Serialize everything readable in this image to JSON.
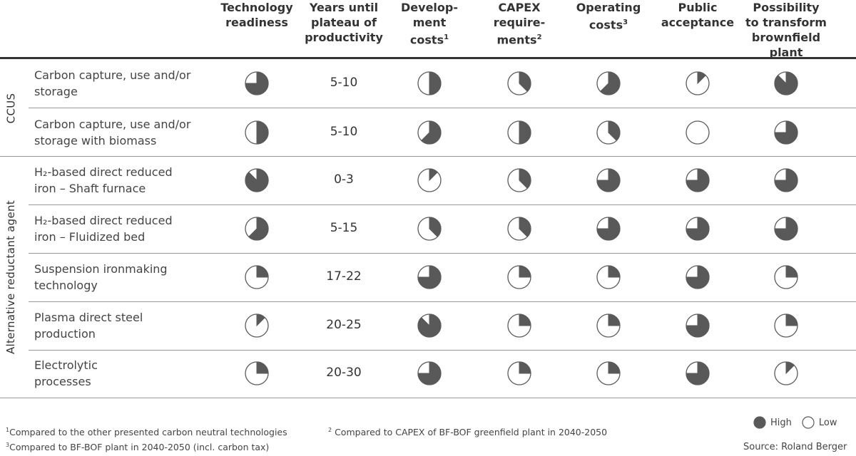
{
  "columns": [
    {
      "title": "Technology\nreadiness",
      "sup": ""
    },
    {
      "title": "Years until\nplateau of\nproductivity",
      "sup": ""
    },
    {
      "title": "Develop-\nment\ncosts",
      "sup": "1"
    },
    {
      "title": "CAPEX\nrequire-\nments",
      "sup": "2"
    },
    {
      "title": "Operating\ncosts",
      "sup": "3"
    },
    {
      "title": "Public\nacceptance",
      "sup": ""
    },
    {
      "title": "Possibility\nto transform\nbrownfield plant",
      "sup": ""
    }
  ],
  "groups": [
    {
      "label": "CCUS"
    },
    {
      "label": "Alternative reductant agent"
    }
  ],
  "rows": [
    {
      "label": "Carbon capture, use and/or\nstorage",
      "years": "5-10",
      "ratings": [
        0.75,
        0.5,
        0.375,
        0.375,
        0.625,
        0.125,
        0.875
      ]
    },
    {
      "label": "Carbon capture, use and/or\nstorage with biomass",
      "years": "5-10",
      "ratings": [
        0.5,
        0.625,
        0.5,
        0.375,
        0.375,
        0,
        0.75
      ]
    },
    {
      "label": "H₂-based direct reduced\niron – Shaft furnace",
      "years": "0-3",
      "ratings": [
        0.875,
        0.125,
        0.375,
        0.25,
        0.75,
        0.75,
        0.75
      ]
    },
    {
      "label": "H₂-based direct reduced\niron – Fluidized bed",
      "years": "5-15",
      "ratings": [
        0.625,
        0.375,
        0.375,
        0.25,
        0.75,
        0.75,
        0.75
      ]
    },
    {
      "label": "Suspension ironmaking\ntechnology",
      "years": "17-22",
      "ratings": [
        0.25,
        0.75,
        0.25,
        0.25,
        0.25,
        0.75,
        0.25
      ]
    },
    {
      "label": "Plasma direct steel\nproduction",
      "years": "20-25",
      "ratings": [
        0.125,
        0.875,
        0.25,
        0.25,
        0.25,
        0.75,
        0.25
      ]
    },
    {
      "label": "Electrolytic\nprocesses",
      "years": "20-30",
      "ratings": [
        0.25,
        0.75,
        0.25,
        0.25,
        0.25,
        0.75,
        0.125
      ]
    }
  ],
  "footnotes": {
    "n1_mark": "1",
    "n1": "Compared to the other presented carbon neutral technologies",
    "n2_mark": "2",
    "n2": "Compared to CAPEX of BF-BOF greenfield plant in 2040-2050",
    "n3_mark": "3",
    "n3": "Compared to BF-BOF plant in 2040-2050 (incl. carbon tax)"
  },
  "legend": {
    "high": "High",
    "low": "Low"
  },
  "source": "Source: Roland Berger",
  "colors": {
    "fill": "#595959",
    "stroke": "#5a5a5a",
    "line": "#9a9a9a",
    "topline": "#333333"
  }
}
